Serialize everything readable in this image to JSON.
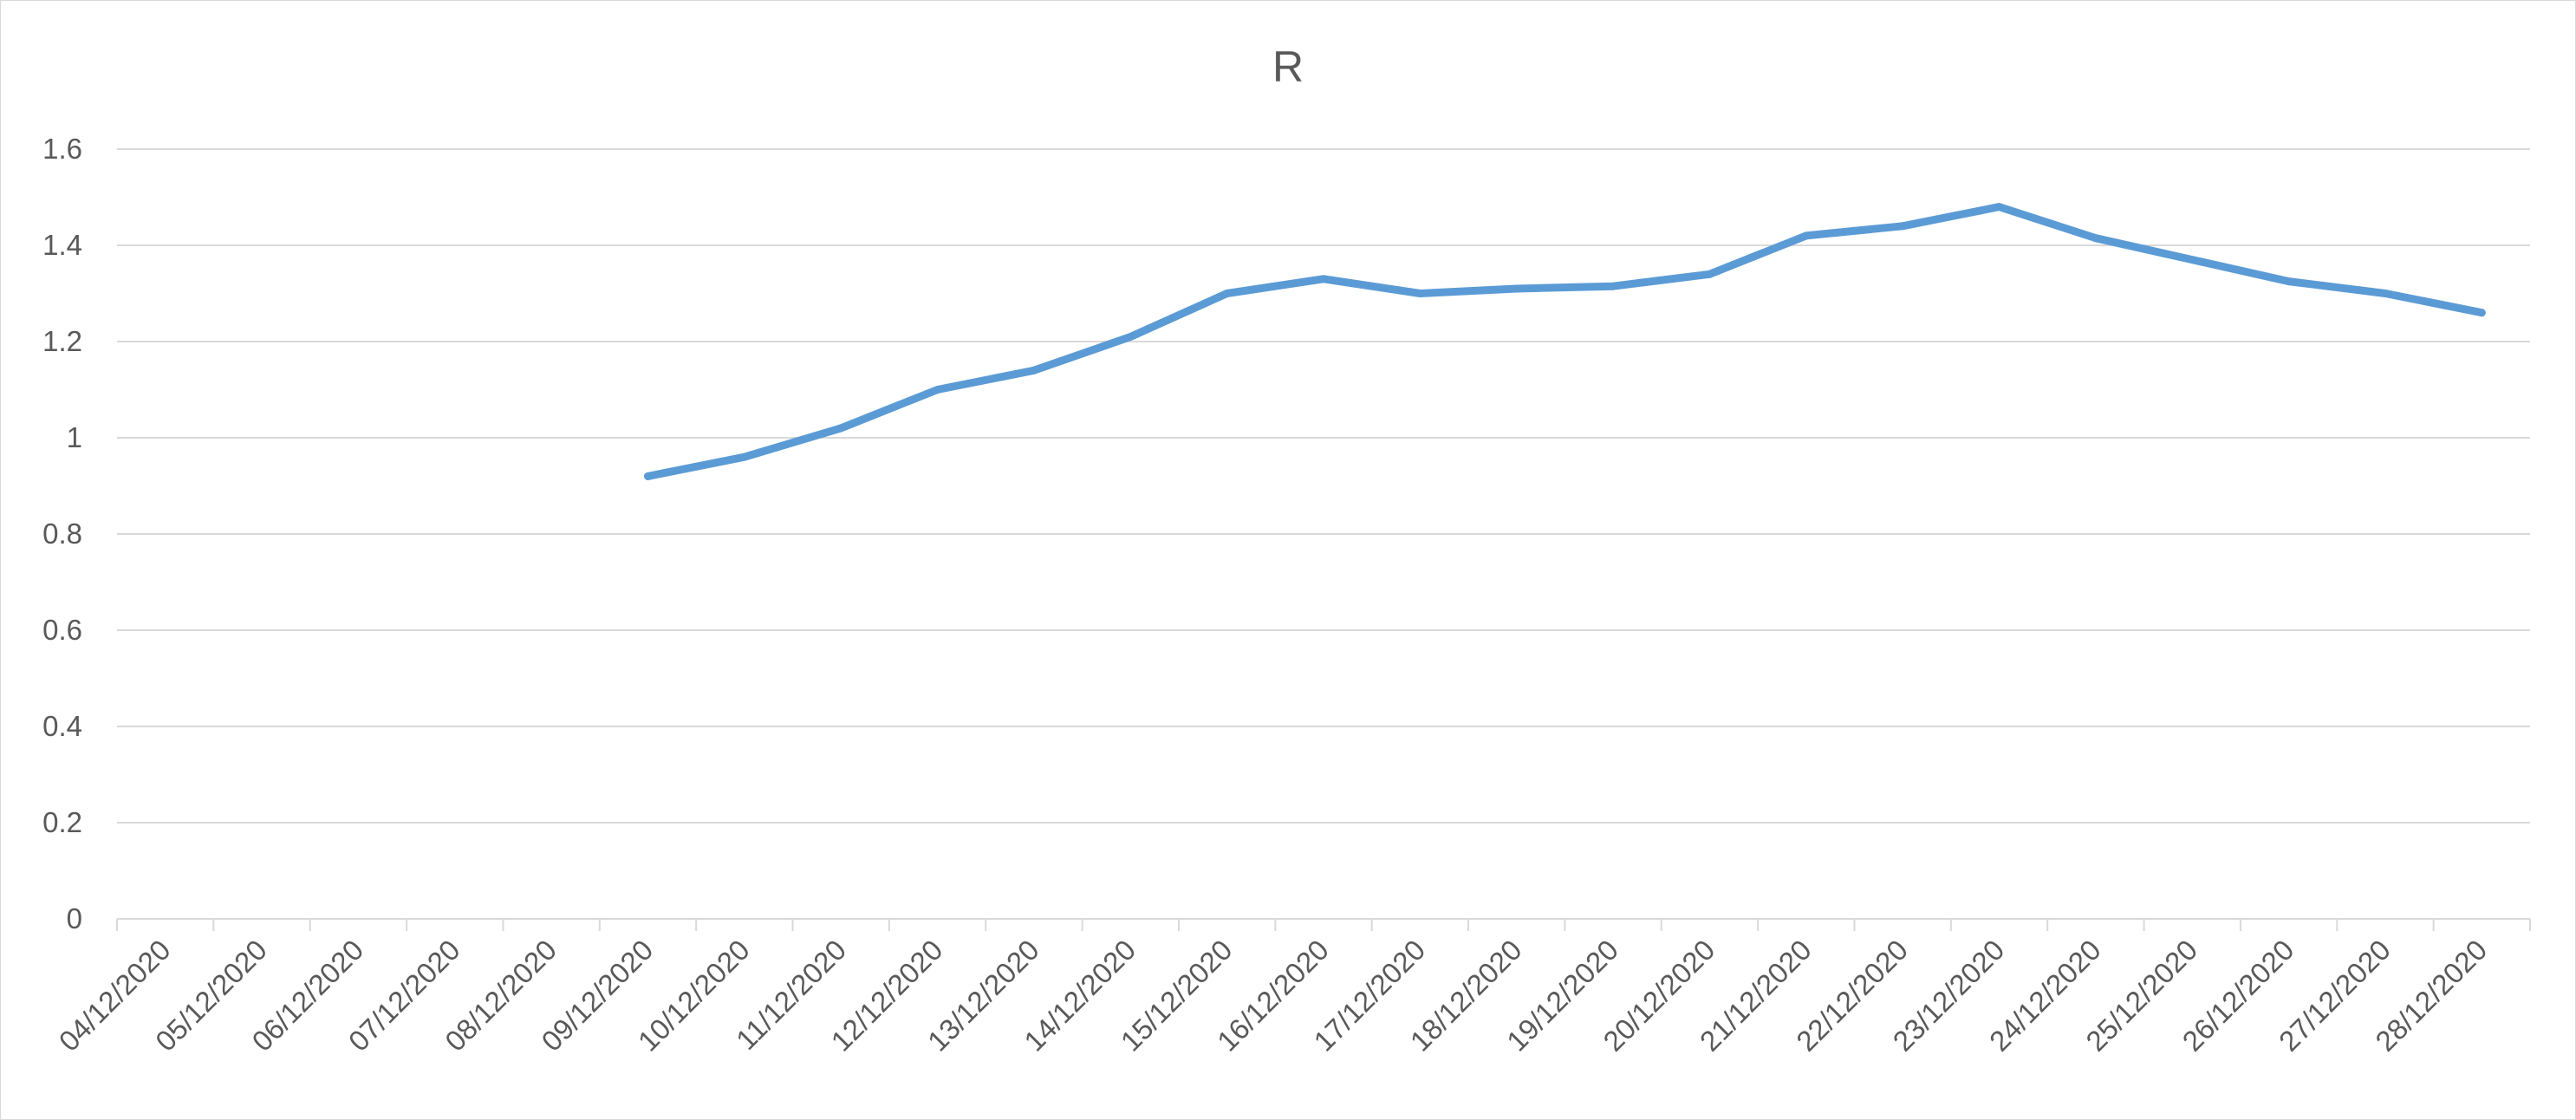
{
  "chart_data": {
    "type": "line",
    "title": "R",
    "xlabel": "",
    "ylabel": "",
    "ylim": [
      0,
      1.6
    ],
    "yticks": [
      "0",
      "0.2",
      "0.4",
      "0.6",
      "0.8",
      "1",
      "1.2",
      "1.4",
      "1.6"
    ],
    "grid": true,
    "legend": "none",
    "categories": [
      "04/12/2020",
      "05/12/2020",
      "06/12/2020",
      "07/12/2020",
      "08/12/2020",
      "09/12/2020",
      "10/12/2020",
      "11/12/2020",
      "12/12/2020",
      "13/12/2020",
      "14/12/2020",
      "15/12/2020",
      "16/12/2020",
      "17/12/2020",
      "18/12/2020",
      "19/12/2020",
      "20/12/2020",
      "21/12/2020",
      "22/12/2020",
      "23/12/2020",
      "24/12/2020",
      "25/12/2020",
      "26/12/2020",
      "27/12/2020",
      "28/12/2020"
    ],
    "series": [
      {
        "color": "#5b9bd5",
        "values": [
          null,
          null,
          null,
          null,
          null,
          0.92,
          0.96,
          1.02,
          1.1,
          1.14,
          1.21,
          1.3,
          1.33,
          1.3,
          1.31,
          1.315,
          1.34,
          1.42,
          1.44,
          1.48,
          1.415,
          1.37,
          1.325,
          1.3,
          1.26
        ]
      }
    ]
  }
}
